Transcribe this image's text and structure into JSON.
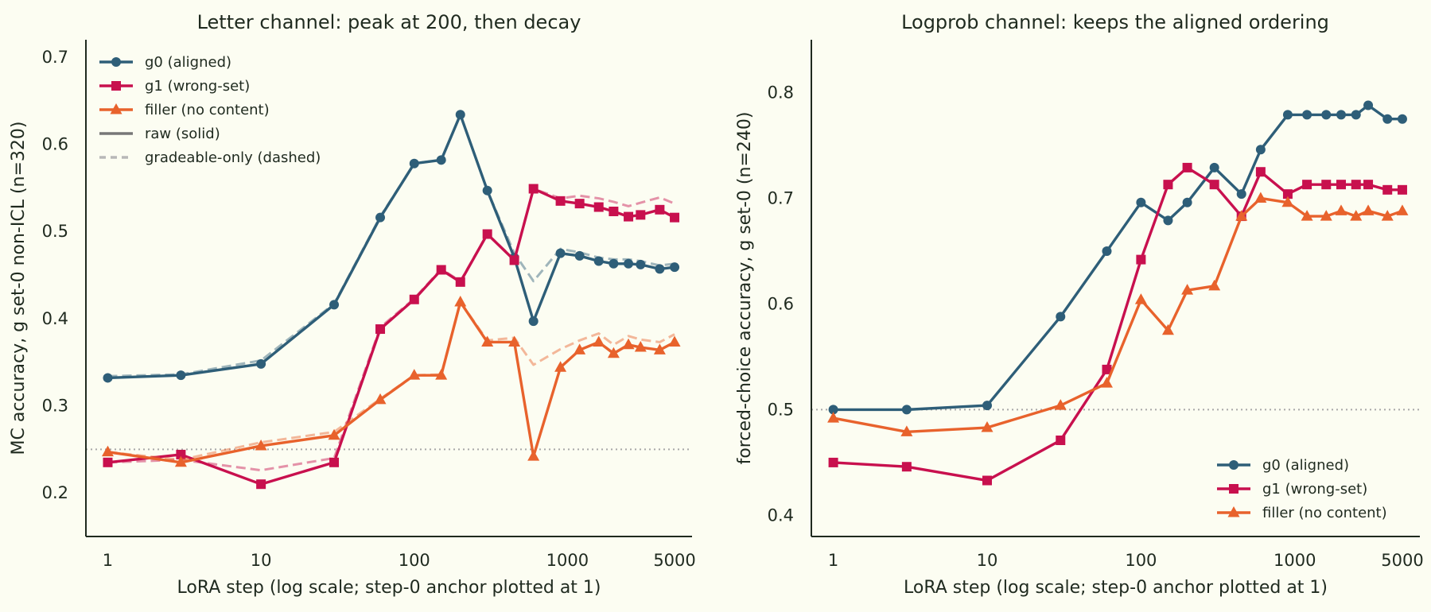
{
  "colors": {
    "background": "#fcfdf2",
    "g0": "#2e5e78",
    "g1": "#c8104e",
    "filler": "#e8622c",
    "raw_legend": "#777777",
    "gradeable_legend": "#b8b8b8",
    "chance_line": "#a8a8a8",
    "axis": "#1f2a1f"
  },
  "chart_data": [
    {
      "type": "line",
      "title": "Letter channel: peak at 200, then decay",
      "xlabel": "LoRA step (log scale; step-0 anchor plotted at 1)",
      "ylabel": "MC accuracy, g set-0 non-ICL (n=320)",
      "x_scale": "log",
      "xlim": [
        0.72,
        6500
      ],
      "ylim": [
        0.15,
        0.72
      ],
      "x_ticks": [
        1,
        10,
        100,
        1000,
        5000
      ],
      "x_tick_labels": [
        "1",
        "10",
        "100",
        "1000",
        "5000"
      ],
      "y_ticks": [
        0.2,
        0.3,
        0.4,
        0.5,
        0.6,
        0.7
      ],
      "y_tick_labels": [
        "0.2",
        "0.3",
        "0.4",
        "0.5",
        "0.6",
        "0.7"
      ],
      "chance_level": 0.25,
      "legend_placement": "upper-left",
      "legend": [
        "g0 (aligned)",
        "g1 (wrong-set)",
        "filler (no content)",
        "raw (solid)",
        "gradeable-only (dashed)"
      ],
      "x": [
        1,
        3,
        10,
        30,
        60,
        100,
        150,
        200,
        300,
        450,
        600,
        900,
        1200,
        1600,
        2000,
        2500,
        3000,
        4000,
        5000
      ],
      "series": [
        {
          "name": "g0 (aligned)",
          "color_key": "g0",
          "marker": "circle",
          "values": [
            0.332,
            0.335,
            0.348,
            0.416,
            0.516,
            0.578,
            0.582,
            0.634,
            0.547,
            0.47,
            0.397,
            0.475,
            0.472,
            0.466,
            0.463,
            0.463,
            0.462,
            0.457,
            0.459
          ],
          "gradeable": [
            0.334,
            0.336,
            0.352,
            0.417,
            0.517,
            0.578,
            0.582,
            0.634,
            0.547,
            0.475,
            0.443,
            0.48,
            0.476,
            0.47,
            0.468,
            0.468,
            0.466,
            0.461,
            0.463
          ]
        },
        {
          "name": "g1 (wrong-set)",
          "color_key": "g1",
          "marker": "square",
          "values": [
            0.235,
            0.244,
            0.21,
            0.235,
            0.388,
            0.422,
            0.456,
            0.442,
            0.497,
            0.467,
            0.549,
            0.535,
            0.532,
            0.528,
            0.523,
            0.517,
            0.519,
            0.525,
            0.516
          ],
          "gradeable": [
            0.235,
            0.238,
            0.226,
            0.24,
            0.39,
            0.423,
            0.457,
            0.443,
            0.497,
            0.468,
            0.549,
            0.538,
            0.541,
            0.538,
            0.534,
            0.529,
            0.533,
            0.539,
            0.532
          ]
        },
        {
          "name": "filler (no content)",
          "color_key": "filler",
          "marker": "triangle",
          "values": [
            0.247,
            0.235,
            0.254,
            0.266,
            0.307,
            0.335,
            0.335,
            0.419,
            0.373,
            0.373,
            0.242,
            0.344,
            0.364,
            0.373,
            0.36,
            0.37,
            0.367,
            0.364,
            0.373
          ],
          "gradeable": [
            0.247,
            0.238,
            0.258,
            0.27,
            0.308,
            0.335,
            0.336,
            0.419,
            0.375,
            0.378,
            0.347,
            0.365,
            0.375,
            0.383,
            0.37,
            0.38,
            0.376,
            0.373,
            0.382
          ]
        }
      ]
    },
    {
      "type": "line",
      "title": "Logprob channel: keeps the aligned ordering",
      "xlabel": "LoRA step (log scale; step-0 anchor plotted at 1)",
      "ylabel": "forced-choice accuracy, g set-0 (n=240)",
      "x_scale": "log",
      "xlim": [
        0.72,
        6500
      ],
      "ylim": [
        0.38,
        0.85
      ],
      "x_ticks": [
        1,
        10,
        100,
        1000,
        5000
      ],
      "x_tick_labels": [
        "1",
        "10",
        "100",
        "1000",
        "5000"
      ],
      "y_ticks": [
        0.4,
        0.5,
        0.6,
        0.7,
        0.8
      ],
      "y_tick_labels": [
        "0.4",
        "0.5",
        "0.6",
        "0.7",
        "0.8"
      ],
      "chance_level": 0.5,
      "legend_placement": "lower-right",
      "legend": [
        "g0 (aligned)",
        "g1 (wrong-set)",
        "filler (no content)"
      ],
      "x": [
        1,
        3,
        10,
        30,
        60,
        100,
        150,
        200,
        300,
        450,
        600,
        900,
        1200,
        1600,
        2000,
        2500,
        3000,
        4000,
        5000
      ],
      "series": [
        {
          "name": "g0 (aligned)",
          "color_key": "g0",
          "marker": "circle",
          "values": [
            0.5,
            0.5,
            0.504,
            0.588,
            0.65,
            0.696,
            0.679,
            0.696,
            0.729,
            0.704,
            0.746,
            0.779,
            0.779,
            0.779,
            0.779,
            0.779,
            0.788,
            0.775,
            0.775
          ]
        },
        {
          "name": "g1 (wrong-set)",
          "color_key": "g1",
          "marker": "square",
          "values": [
            0.45,
            0.446,
            0.433,
            0.471,
            0.538,
            0.642,
            0.713,
            0.729,
            0.713,
            0.683,
            0.725,
            0.704,
            0.713,
            0.713,
            0.713,
            0.713,
            0.713,
            0.708,
            0.708
          ]
        },
        {
          "name": "filler (no content)",
          "color_key": "filler",
          "marker": "triangle",
          "values": [
            0.492,
            0.479,
            0.483,
            0.504,
            0.525,
            0.604,
            0.575,
            0.613,
            0.617,
            0.683,
            0.7,
            0.696,
            0.683,
            0.683,
            0.688,
            0.683,
            0.688,
            0.683,
            0.688
          ]
        }
      ]
    }
  ]
}
